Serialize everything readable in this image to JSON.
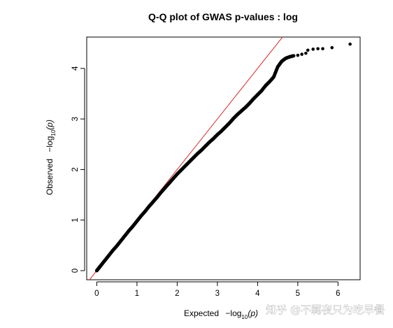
{
  "chart_data": {
    "type": "scatter",
    "title": "Q-Q plot of GWAS p-values : log",
    "xlabel": {
      "prefix": "Expected",
      "minus": "−log",
      "sub": "10",
      "arg": "(p)"
    },
    "ylabel": {
      "prefix": "Observed",
      "minus": "−log",
      "sub": "10",
      "arg": "(p)"
    },
    "xlim": [
      -0.25,
      6.55
    ],
    "ylim": [
      -0.18,
      4.62
    ],
    "x_ticks": [
      0,
      1,
      2,
      3,
      4,
      5,
      6
    ],
    "x_tick_labels": [
      "0",
      "1",
      "2",
      "3",
      "4",
      "5",
      "6"
    ],
    "y_ticks": [
      0,
      1,
      2,
      3,
      4
    ],
    "y_tick_labels": [
      "0",
      "1",
      "2",
      "3",
      "4"
    ],
    "point_color": "#000000",
    "reference_line": {
      "slope": 1,
      "intercept": 0,
      "color": "#d62728"
    },
    "series": [
      {
        "points": [
          [
            0.0,
            0.0
          ],
          [
            0.05,
            0.05
          ],
          [
            0.1,
            0.1
          ],
          [
            0.2,
            0.2
          ],
          [
            0.3,
            0.3
          ],
          [
            0.4,
            0.4
          ],
          [
            0.5,
            0.49
          ],
          [
            0.6,
            0.59
          ],
          [
            0.7,
            0.69
          ],
          [
            0.8,
            0.79
          ],
          [
            0.9,
            0.88
          ],
          [
            1.0,
            0.98
          ],
          [
            1.1,
            1.08
          ],
          [
            1.2,
            1.17
          ],
          [
            1.3,
            1.27
          ],
          [
            1.4,
            1.36
          ],
          [
            1.5,
            1.45
          ],
          [
            1.6,
            1.55
          ],
          [
            1.7,
            1.64
          ],
          [
            1.8,
            1.73
          ],
          [
            1.9,
            1.82
          ],
          [
            2.0,
            1.91
          ],
          [
            2.1,
            1.99
          ],
          [
            2.2,
            2.07
          ],
          [
            2.3,
            2.15
          ],
          [
            2.4,
            2.23
          ],
          [
            2.5,
            2.31
          ],
          [
            2.6,
            2.38
          ],
          [
            2.7,
            2.46
          ],
          [
            2.8,
            2.54
          ],
          [
            2.9,
            2.61
          ],
          [
            3.0,
            2.69
          ],
          [
            3.1,
            2.76
          ],
          [
            3.2,
            2.84
          ],
          [
            3.3,
            2.92
          ],
          [
            3.4,
            3.01
          ],
          [
            3.5,
            3.09
          ],
          [
            3.6,
            3.16
          ],
          [
            3.7,
            3.23
          ],
          [
            3.8,
            3.31
          ],
          [
            3.9,
            3.4
          ],
          [
            4.0,
            3.48
          ],
          [
            4.1,
            3.56
          ],
          [
            4.2,
            3.66
          ],
          [
            4.3,
            3.74
          ],
          [
            4.4,
            3.83
          ],
          [
            4.5,
            4.03
          ],
          [
            4.6,
            4.14
          ],
          [
            4.7,
            4.2
          ],
          [
            4.8,
            4.23
          ],
          [
            4.9,
            4.25
          ],
          [
            5.0,
            4.26
          ],
          [
            5.1,
            4.28
          ],
          [
            5.2,
            4.3
          ],
          [
            5.25,
            4.36
          ],
          [
            5.38,
            4.38
          ],
          [
            5.5,
            4.39
          ],
          [
            5.62,
            4.39
          ],
          [
            5.85,
            4.41
          ],
          [
            6.3,
            4.48
          ]
        ]
      }
    ]
  },
  "watermark": "知乎 @不羁夜只为吃早餐"
}
